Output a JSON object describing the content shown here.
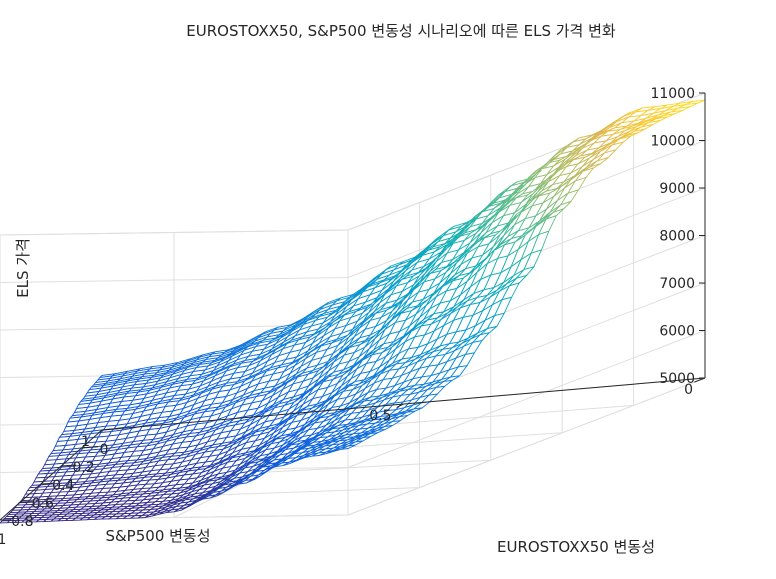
{
  "chart_data": {
    "type": "surface",
    "title": "EUROSTOXX50, S&P500 변동성 시나리오에 따른 ELS 가격 변화",
    "xlabel": "EUROSTOXX50 변동성",
    "ylabel": "S&P500 변동성",
    "zlabel": "ELS 가격",
    "xlim": [
      0,
      1
    ],
    "ylim": [
      0,
      1
    ],
    "zlim": [
      5000,
      11000
    ],
    "x_ticks": [
      "0",
      "0.2",
      "0.4",
      "0.6",
      "0.8",
      "1"
    ],
    "y_ticks": [
      "0",
      "0.5",
      "1"
    ],
    "z_ticks": [
      "5000",
      "6000",
      "7000",
      "8000",
      "9000",
      "10000",
      "11000"
    ],
    "grid": true,
    "colormap": "parula",
    "x": [
      0,
      0.1,
      0.2,
      0.3,
      0.4,
      0.5,
      0.6,
      0.7,
      0.8,
      0.9,
      1.0
    ],
    "y": [
      0,
      0.1,
      0.2,
      0.3,
      0.4,
      0.5,
      0.6,
      0.7,
      0.8,
      0.9,
      1.0
    ],
    "z": [
      [
        10850,
        10800,
        10700,
        10350,
        9700,
        8600,
        7700,
        7000,
        6650,
        6500,
        6400
      ],
      [
        10800,
        10600,
        10300,
        9850,
        9150,
        8200,
        7400,
        6850,
        6500,
        6350,
        6250
      ],
      [
        10300,
        10050,
        9600,
        9050,
        8450,
        7800,
        7150,
        6650,
        6350,
        6200,
        6050
      ],
      [
        9500,
        9250,
        8900,
        8400,
        7850,
        7250,
        6750,
        6350,
        6050,
        5850,
        5700
      ],
      [
        8700,
        8450,
        8100,
        7650,
        7200,
        6750,
        6300,
        5950,
        5700,
        5500,
        5400
      ],
      [
        8000,
        7800,
        7450,
        7050,
        6650,
        6250,
        5900,
        5600,
        5350,
        5200,
        5120
      ],
      [
        7350,
        7200,
        6950,
        6600,
        6250,
        5900,
        5600,
        5350,
        5150,
        5050,
        5000
      ],
      [
        6850,
        6750,
        6550,
        6300,
        6000,
        5700,
        5450,
        5250,
        5100,
        5020,
        4990
      ],
      [
        6450,
        6400,
        6250,
        6050,
        5800,
        5550,
        5350,
        5200,
        5050,
        4990,
        4970
      ],
      [
        6250,
        6200,
        6100,
        5920,
        5700,
        5480,
        5300,
        5150,
        5020,
        4970,
        4950
      ],
      [
        6150,
        6100,
        6000,
        5850,
        5650,
        5450,
        5280,
        5130,
        5010,
        4960,
        4940
      ]
    ]
  }
}
